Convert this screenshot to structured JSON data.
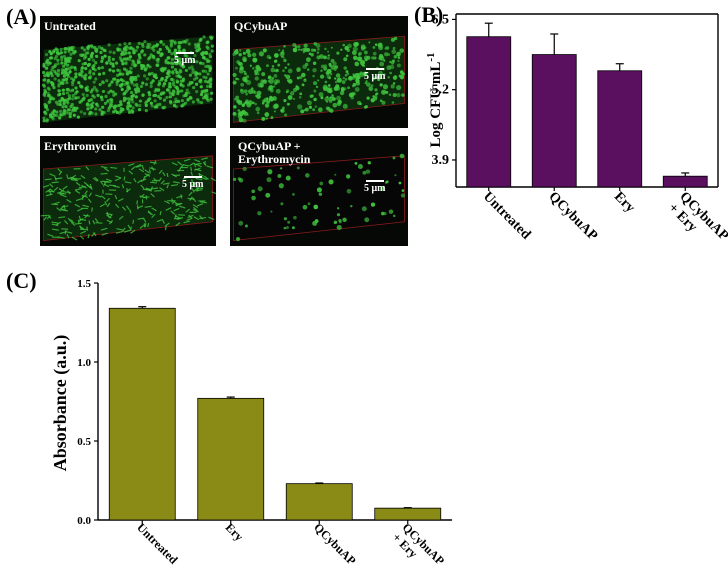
{
  "panels": {
    "a_label": "(A)",
    "b_label": "(B)",
    "c_label": "(C)"
  },
  "micrographs": [
    {
      "label": "Untreated",
      "scale": "5 μm"
    },
    {
      "label": "QCybuAP",
      "scale": "5 μm"
    },
    {
      "label": "Erythromycin",
      "scale": "5 μm"
    },
    {
      "label": "QCybuAP +\nErythromycin",
      "scale": "5 μm"
    }
  ],
  "colors": {
    "panel_b_bar": "#5b0f5f",
    "panel_c_bar": "#8a8a16",
    "cell_green": "#3ec43e"
  },
  "chart_data": [
    {
      "id": "B",
      "type": "bar",
      "categories": [
        "Untreated",
        "QCybuAP",
        "Ery",
        "QCybuAP\n+ Ery"
      ],
      "values": [
        6.18,
        5.85,
        5.55,
        3.6
      ],
      "errors": [
        0.25,
        0.38,
        0.13,
        0.06
      ],
      "ylabel": "Log CFU mL",
      "ylabel_superscript": "-1",
      "yticks": [
        3.9,
        5.2,
        6.5
      ],
      "ylim": [
        3.4,
        6.6
      ]
    },
    {
      "id": "C",
      "type": "bar",
      "categories": [
        "Untreated",
        "Ery",
        "QCybuAP",
        "QCybuAP\n+ Ery"
      ],
      "values": [
        1.34,
        0.77,
        0.23,
        0.075
      ],
      "errors": [
        0.01,
        0.008,
        0.004,
        0.003
      ],
      "ylabel": "Absorbance (a.u.)",
      "yticks": [
        "0.0",
        "0.5",
        "1.0",
        "1.5"
      ],
      "ylim": [
        0,
        1.5
      ]
    }
  ]
}
